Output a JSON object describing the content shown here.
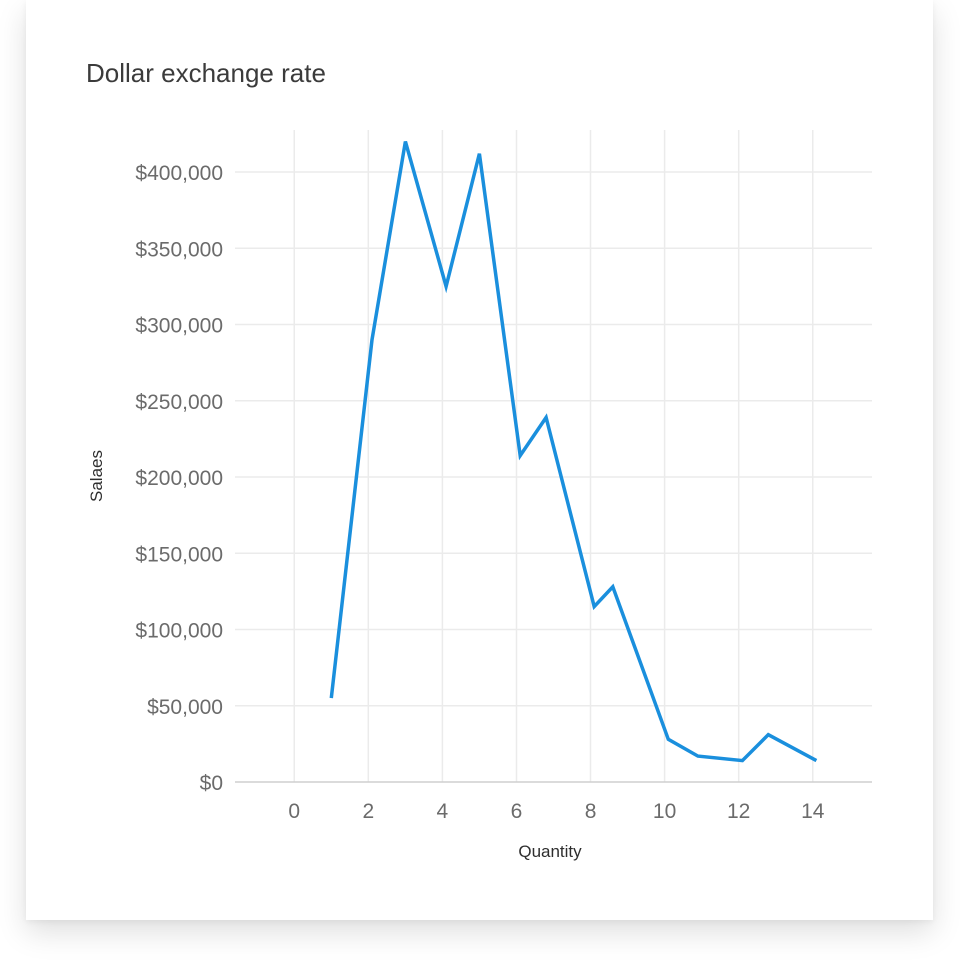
{
  "chart_data": {
    "type": "line",
    "title": "Dollar exchange rate",
    "xlabel": "Quantity",
    "ylabel": "Salaes",
    "xlim": [
      -1.6,
      15.6
    ],
    "ylim": [
      0,
      400000
    ],
    "x_ticks": [
      0,
      2,
      4,
      6,
      8,
      10,
      12,
      14
    ],
    "y_ticks": [
      0,
      50000,
      100000,
      150000,
      200000,
      250000,
      300000,
      350000,
      400000
    ],
    "y_tick_labels": [
      "$0",
      "$50,000",
      "$100,000",
      "$150,000",
      "$200,000",
      "$250,000",
      "$300,000",
      "$350,000",
      "$400,000"
    ],
    "grid": true,
    "series": [
      {
        "color": "#1a8fdd",
        "x": [
          1.0,
          2.1,
          3.0,
          4.1,
          5.0,
          6.1,
          6.8,
          8.1,
          8.6,
          10.1,
          10.9,
          12.1,
          12.8,
          14.1
        ],
        "y": [
          55000,
          290000,
          420000,
          325000,
          412000,
          214000,
          239000,
          115000,
          128000,
          28000,
          17000,
          14000,
          31000,
          14000
        ]
      }
    ]
  }
}
